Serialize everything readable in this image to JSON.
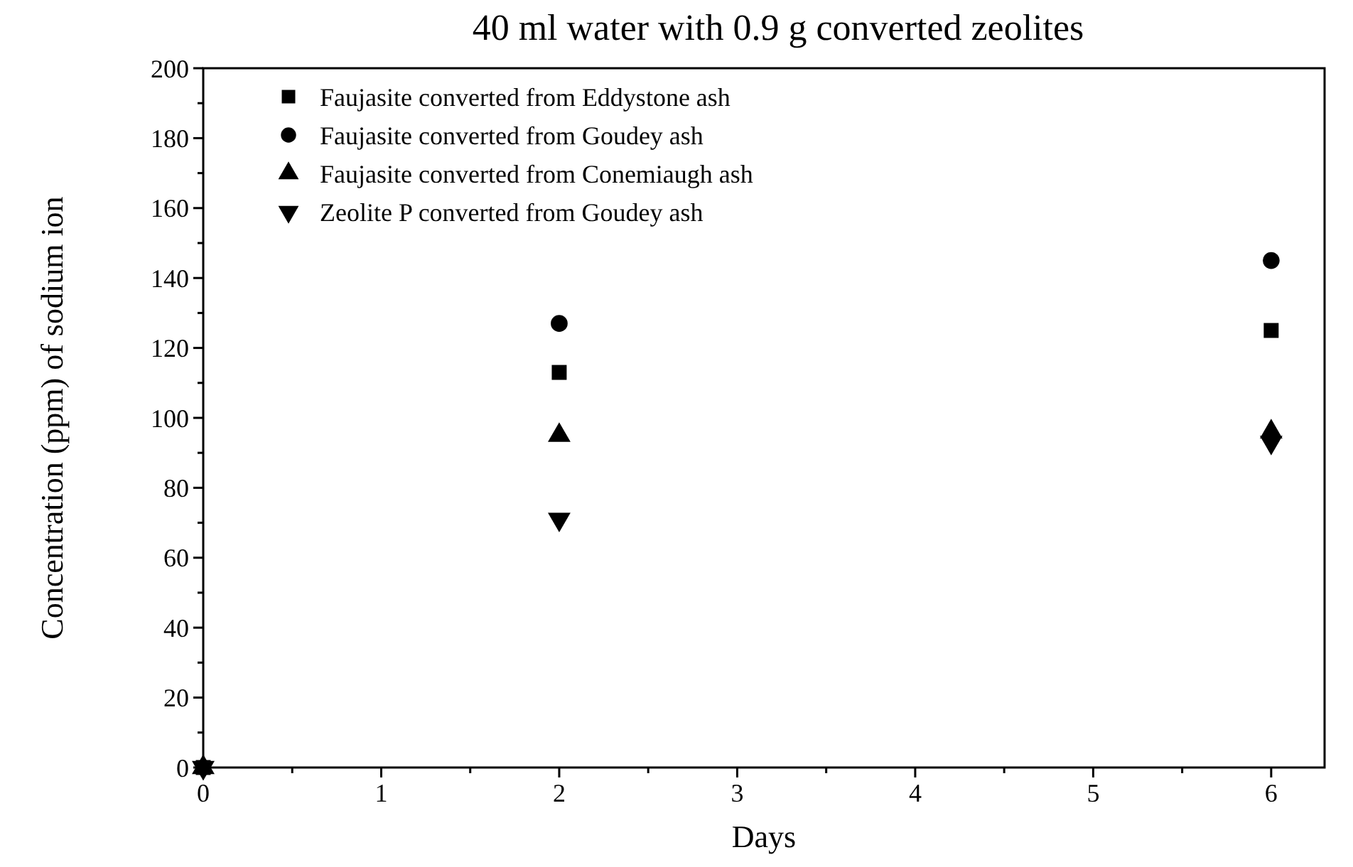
{
  "chart_data": {
    "type": "scatter",
    "title": "40 ml water with 0.9 g converted zeolites",
    "xlabel": "Days",
    "ylabel": "Concentration (ppm) of sodium ion",
    "xlim": [
      0,
      6.3
    ],
    "ylim": [
      0,
      200
    ],
    "xticks": [
      0,
      {
        "value": 0.5,
        "label": null
      },
      1,
      {
        "value": 1.5,
        "label": null
      },
      2,
      {
        "value": 2.5,
        "label": null
      },
      3,
      {
        "value": 3.5,
        "label": null
      },
      4,
      {
        "value": 4.5,
        "label": null
      },
      5,
      {
        "value": 5.5,
        "label": null
      },
      6
    ],
    "yticks": [
      0,
      {
        "value": 10,
        "label": null
      },
      20,
      {
        "value": 30,
        "label": null
      },
      40,
      {
        "value": 50,
        "label": null
      },
      60,
      {
        "value": 70,
        "label": null
      },
      80,
      {
        "value": 90,
        "label": null
      },
      100,
      {
        "value": 110,
        "label": null
      },
      120,
      {
        "value": 130,
        "label": null
      },
      140,
      {
        "value": 150,
        "label": null
      },
      160,
      {
        "value": 170,
        "label": null
      },
      180,
      {
        "value": 190,
        "label": null
      },
      200
    ],
    "grid": false,
    "legend": "top left",
    "series": [
      {
        "name": "Faujasite converted from Eddystone ash",
        "color": "#000000",
        "marker": "square",
        "x": [
          0,
          2,
          6
        ],
        "values": [
          0,
          113,
          125
        ]
      },
      {
        "name": "Faujasite converted from Goudey ash",
        "color": "#000000",
        "marker": "circle",
        "x": [
          2,
          6
        ],
        "values": [
          127,
          145
        ]
      },
      {
        "name": "Faujasite converted from Conemiaugh ash",
        "color": "#000000",
        "marker": "triangle",
        "x": [
          0,
          2,
          6
        ],
        "values": [
          0,
          95,
          96
        ]
      },
      {
        "name": "Zeolite P converted from Goudey ash",
        "color": "#000000",
        "marker": "triangle-down",
        "x": [
          0,
          2,
          6
        ],
        "values": [
          0,
          71,
          93
        ]
      }
    ]
  }
}
